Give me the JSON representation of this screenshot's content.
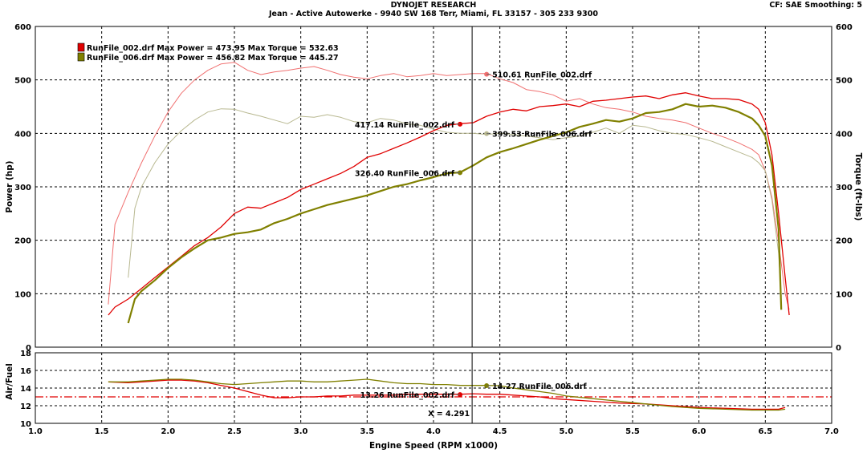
{
  "header": {
    "title": "DYNOJET RESEARCH",
    "subtitle": "Jean - Active Autowerke - 9940 SW 168 Terr, Miami, FL 33157 - 305 233 9300",
    "settings": "CF: SAE  Smoothing: 5"
  },
  "colors": {
    "run002": "#e00000",
    "run002_light": "#f07070",
    "run006": "#808000",
    "run006_light": "#b8b890",
    "grid": "#000000"
  },
  "chart_data": [
    {
      "type": "line",
      "panel": "power-torque",
      "xlabel": "Engine Speed (RPM x1000)",
      "ylabel_left": "Power (hp)",
      "ylabel_right": "Torque (ft-lbs)",
      "xlim": [
        1.0,
        7.0
      ],
      "ylim": [
        0,
        600
      ],
      "x_ticks": [
        "1.0",
        "1.5",
        "2.0",
        "2.5",
        "3.0",
        "3.5",
        "4.0",
        "4.5",
        "5.0",
        "5.5",
        "6.0",
        "6.5",
        "7.0"
      ],
      "y_ticks_left": [
        "0",
        "100",
        "200",
        "300",
        "400",
        "500",
        "600"
      ],
      "y_ticks_right": [
        "0",
        "100",
        "200",
        "300",
        "400",
        "500",
        "600"
      ],
      "grid": true,
      "legend": {
        "position": "top-left",
        "entries": [
          {
            "text": "RunFile_002.drf Max Power = 473.95 Max Torque = 532.63",
            "color_key": "run002"
          },
          {
            "text": "RunFile_006.drf Max Power = 456.82 Max Torque = 445.27",
            "color_key": "run006"
          }
        ]
      },
      "series": [
        {
          "name": "RunFile_002.drf Power",
          "color_key": "run002",
          "width": 1.3,
          "x": [
            1.55,
            1.6,
            1.7,
            1.8,
            1.9,
            2.0,
            2.1,
            2.2,
            2.3,
            2.4,
            2.5,
            2.6,
            2.7,
            2.8,
            2.9,
            3.0,
            3.1,
            3.2,
            3.3,
            3.4,
            3.5,
            3.6,
            3.7,
            3.8,
            3.9,
            4.0,
            4.1,
            4.2,
            4.3,
            4.4,
            4.5,
            4.6,
            4.7,
            4.8,
            4.9,
            5.0,
            5.1,
            5.2,
            5.3,
            5.4,
            5.5,
            5.6,
            5.7,
            5.8,
            5.9,
            6.0,
            6.1,
            6.2,
            6.3,
            6.4,
            6.45,
            6.5,
            6.55,
            6.6,
            6.65,
            6.68
          ],
          "y": [
            60,
            75,
            90,
            110,
            130,
            150,
            170,
            190,
            205,
            225,
            250,
            262,
            260,
            270,
            280,
            295,
            305,
            315,
            325,
            338,
            355,
            362,
            372,
            382,
            393,
            405,
            415,
            418,
            420,
            432,
            440,
            445,
            442,
            450,
            452,
            455,
            450,
            460,
            462,
            465,
            468,
            470,
            465,
            472,
            476,
            470,
            465,
            465,
            463,
            455,
            445,
            420,
            360,
            250,
            130,
            60
          ]
        },
        {
          "name": "RunFile_006.drf Power",
          "color_key": "run006",
          "width": 2.2,
          "x": [
            1.7,
            1.75,
            1.8,
            1.9,
            2.0,
            2.1,
            2.2,
            2.3,
            2.4,
            2.5,
            2.6,
            2.7,
            2.8,
            2.9,
            3.0,
            3.1,
            3.2,
            3.3,
            3.4,
            3.5,
            3.6,
            3.7,
            3.8,
            3.9,
            4.0,
            4.1,
            4.2,
            4.3,
            4.4,
            4.5,
            4.6,
            4.7,
            4.8,
            4.9,
            5.0,
            5.1,
            5.2,
            5.3,
            5.4,
            5.5,
            5.6,
            5.7,
            5.8,
            5.9,
            6.0,
            6.1,
            6.2,
            6.3,
            6.4,
            6.45,
            6.5,
            6.55,
            6.6,
            6.62
          ],
          "y": [
            45,
            90,
            105,
            125,
            148,
            168,
            185,
            200,
            205,
            212,
            215,
            220,
            232,
            240,
            250,
            258,
            266,
            272,
            278,
            284,
            292,
            300,
            305,
            312,
            318,
            325,
            327,
            340,
            355,
            365,
            372,
            380,
            388,
            395,
            402,
            412,
            418,
            425,
            422,
            428,
            438,
            440,
            445,
            455,
            450,
            452,
            448,
            440,
            428,
            415,
            395,
            340,
            220,
            70
          ]
        },
        {
          "name": "RunFile_002.drf Torque",
          "color_key": "run002_light",
          "width": 1.0,
          "x": [
            1.55,
            1.6,
            1.7,
            1.8,
            1.9,
            2.0,
            2.1,
            2.2,
            2.3,
            2.4,
            2.5,
            2.6,
            2.7,
            2.8,
            2.9,
            3.0,
            3.1,
            3.2,
            3.3,
            3.4,
            3.5,
            3.6,
            3.7,
            3.8,
            3.9,
            4.0,
            4.1,
            4.2,
            4.3,
            4.4,
            4.5,
            4.6,
            4.7,
            4.8,
            4.9,
            5.0,
            5.1,
            5.2,
            5.3,
            5.4,
            5.5,
            5.6,
            5.7,
            5.8,
            5.9,
            6.0,
            6.1,
            6.2,
            6.3,
            6.4,
            6.45,
            6.5,
            6.55,
            6.6,
            6.65,
            6.68
          ],
          "y": [
            80,
            230,
            290,
            345,
            395,
            440,
            475,
            500,
            518,
            530,
            533,
            518,
            510,
            515,
            518,
            522,
            525,
            518,
            510,
            505,
            502,
            508,
            512,
            506,
            508,
            512,
            508,
            510,
            512,
            512,
            502,
            495,
            482,
            478,
            472,
            460,
            465,
            455,
            448,
            445,
            440,
            432,
            428,
            425,
            420,
            410,
            400,
            392,
            382,
            370,
            360,
            330,
            280,
            195,
            100,
            70
          ]
        },
        {
          "name": "RunFile_006.drf Torque",
          "color_key": "run006_light",
          "width": 1.0,
          "x": [
            1.7,
            1.75,
            1.8,
            1.9,
            2.0,
            2.1,
            2.2,
            2.3,
            2.4,
            2.5,
            2.6,
            2.7,
            2.8,
            2.9,
            3.0,
            3.1,
            3.2,
            3.3,
            3.4,
            3.5,
            3.6,
            3.7,
            3.8,
            3.9,
            4.0,
            4.1,
            4.2,
            4.3,
            4.4,
            4.5,
            4.6,
            4.7,
            4.8,
            4.9,
            5.0,
            5.1,
            5.2,
            5.3,
            5.4,
            5.5,
            5.6,
            5.7,
            5.8,
            5.9,
            6.0,
            6.1,
            6.2,
            6.3,
            6.4,
            6.45,
            6.5,
            6.55,
            6.6,
            6.62
          ],
          "y": [
            130,
            260,
            300,
            345,
            380,
            405,
            425,
            440,
            446,
            445,
            438,
            432,
            425,
            418,
            432,
            430,
            435,
            430,
            422,
            420,
            428,
            425,
            418,
            415,
            408,
            402,
            400,
            400,
            398,
            400,
            398,
            395,
            392,
            388,
            392,
            395,
            402,
            410,
            400,
            415,
            412,
            405,
            400,
            398,
            392,
            385,
            375,
            365,
            355,
            345,
            330,
            275,
            175,
            95
          ]
        }
      ],
      "annotations": [
        {
          "text": "510.61 RunFile_002.drf",
          "x": 4.4,
          "y": 510.61,
          "side": "right",
          "color_key": "run002_light"
        },
        {
          "text": "417.14 RunFile_002.drf",
          "x": 4.2,
          "y": 417.14,
          "side": "left",
          "color_key": "run002"
        },
        {
          "text": "399.53 RunFile_006.drf",
          "x": 4.4,
          "y": 399.53,
          "side": "right",
          "color_key": "run006_light"
        },
        {
          "text": "326.40 RunFile_006.drf",
          "x": 4.2,
          "y": 326.4,
          "side": "left",
          "color_key": "run006"
        }
      ],
      "cursor_x": 4.291
    },
    {
      "type": "line",
      "panel": "air-fuel",
      "ylabel": "Air/Fuel",
      "xlim": [
        1.0,
        7.0
      ],
      "ylim": [
        10,
        18
      ],
      "y_ticks": [
        "10",
        "12",
        "14",
        "16",
        "18"
      ],
      "reference_line": 13.0,
      "series": [
        {
          "name": "RunFile_002.drf Air/Fuel",
          "color_key": "run002",
          "width": 1.3,
          "x": [
            1.55,
            1.7,
            1.8,
            1.9,
            2.0,
            2.1,
            2.2,
            2.3,
            2.4,
            2.5,
            2.6,
            2.7,
            2.8,
            2.9,
            3.0,
            3.1,
            3.2,
            3.3,
            3.4,
            3.5,
            3.6,
            3.7,
            3.8,
            3.9,
            4.0,
            4.1,
            4.2,
            4.3,
            4.4,
            4.5,
            4.6,
            4.7,
            4.8,
            4.9,
            5.0,
            5.2,
            5.4,
            5.6,
            5.8,
            6.0,
            6.2,
            6.4,
            6.6,
            6.65
          ],
          "y": [
            14.7,
            14.6,
            14.7,
            14.8,
            14.9,
            14.9,
            14.8,
            14.6,
            14.3,
            14.0,
            13.6,
            13.2,
            12.9,
            12.9,
            13.0,
            13.0,
            13.1,
            13.1,
            13.2,
            13.2,
            13.2,
            13.2,
            13.3,
            13.3,
            13.3,
            13.3,
            13.3,
            13.35,
            13.3,
            13.3,
            13.2,
            13.1,
            13.0,
            12.8,
            12.7,
            12.5,
            12.3,
            12.2,
            12.0,
            11.8,
            11.7,
            11.6,
            11.6,
            11.8
          ]
        },
        {
          "name": "RunFile_006.drf Air/Fuel",
          "color_key": "run006",
          "width": 1.3,
          "x": [
            1.55,
            1.7,
            1.8,
            1.9,
            2.0,
            2.1,
            2.2,
            2.3,
            2.4,
            2.5,
            2.6,
            2.7,
            2.8,
            2.9,
            3.0,
            3.1,
            3.2,
            3.3,
            3.4,
            3.5,
            3.6,
            3.7,
            3.8,
            3.9,
            4.0,
            4.1,
            4.2,
            4.3,
            4.4,
            4.5,
            4.6,
            4.7,
            4.8,
            4.9,
            5.0,
            5.2,
            5.4,
            5.6,
            5.8,
            6.0,
            6.2,
            6.4,
            6.6,
            6.65
          ],
          "y": [
            14.7,
            14.7,
            14.8,
            14.9,
            15.0,
            15.0,
            14.9,
            14.7,
            14.5,
            14.4,
            14.5,
            14.6,
            14.7,
            14.8,
            14.8,
            14.7,
            14.7,
            14.8,
            14.9,
            15.0,
            14.8,
            14.6,
            14.5,
            14.5,
            14.4,
            14.4,
            14.3,
            14.3,
            14.3,
            14.27,
            14.0,
            13.8,
            13.6,
            13.4,
            13.1,
            12.8,
            12.5,
            12.2,
            11.9,
            11.7,
            11.6,
            11.5,
            11.5,
            11.6
          ]
        }
      ],
      "annotations": [
        {
          "text": "14.27 RunFile_006.drf",
          "x": 4.4,
          "y": 14.27,
          "side": "right",
          "color_key": "run006"
        },
        {
          "text": "13.26 RunFile_002.drf",
          "x": 4.2,
          "y": 13.26,
          "side": "left",
          "color_key": "run002"
        }
      ],
      "cursor_label": "X = 4.291",
      "cursor_x": 4.291
    }
  ]
}
